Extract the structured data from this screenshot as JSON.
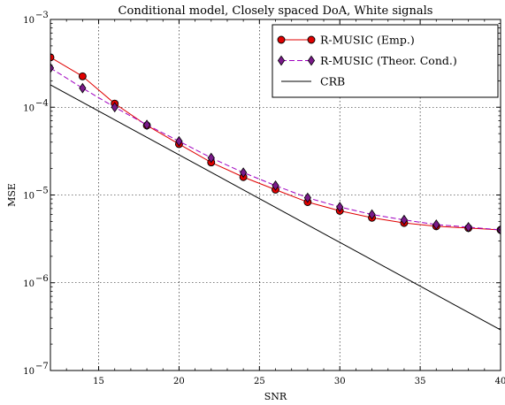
{
  "chart_data": {
    "type": "line",
    "title": "Conditional model, Closely spaced DoA, White signals",
    "xlabel": "SNR",
    "ylabel": "MSE",
    "yscale": "log",
    "xlim": [
      12,
      40
    ],
    "ylim_exp": [
      -7,
      -3
    ],
    "ylim": [
      1e-07,
      0.001
    ],
    "xticks": [
      15,
      20,
      25,
      30,
      35,
      40
    ],
    "xtick_labels": [
      "15",
      "20",
      "25",
      "30",
      "35",
      "40"
    ],
    "ytick_exps": [
      -7,
      -6,
      -5,
      -4,
      -3
    ],
    "ytick_base": "10",
    "grid": true,
    "legend_position": "top-right",
    "series": [
      {
        "name": "R-MUSIC (Emp.)",
        "color": "#e00000",
        "marker": "circle",
        "marker_fill": "#e00000",
        "dash": "solid",
        "x": [
          12,
          14,
          16,
          18,
          20,
          22,
          24,
          26,
          28,
          30,
          32,
          34,
          36,
          38,
          40
        ],
        "values": [
          0.00037,
          0.000225,
          0.00011,
          6.2e-05,
          3.8e-05,
          2.35e-05,
          1.6e-05,
          1.15e-05,
          8.3e-06,
          6.6e-06,
          5.5e-06,
          4.8e-06,
          4.4e-06,
          4.2e-06,
          4e-06
        ]
      },
      {
        "name": "R-MUSIC (Theor. Cond.)",
        "color": "#a000c0",
        "marker": "diamond",
        "marker_fill": "#7a1a8a",
        "dash": "dashed",
        "x": [
          12,
          14,
          16,
          18,
          20,
          22,
          24,
          26,
          28,
          30,
          32,
          34,
          36,
          38,
          40
        ],
        "values": [
          0.00028,
          0.000165,
          0.0001,
          6.3e-05,
          4.1e-05,
          2.65e-05,
          1.8e-05,
          1.28e-05,
          9.3e-06,
          7.3e-06,
          6e-06,
          5.2e-06,
          4.6e-06,
          4.3e-06,
          4e-06
        ]
      },
      {
        "name": "CRB",
        "color": "#000000",
        "marker": "none",
        "dash": "solid",
        "x": [
          12,
          40
        ],
        "values": [
          0.00018,
          2.9e-07
        ]
      }
    ]
  }
}
